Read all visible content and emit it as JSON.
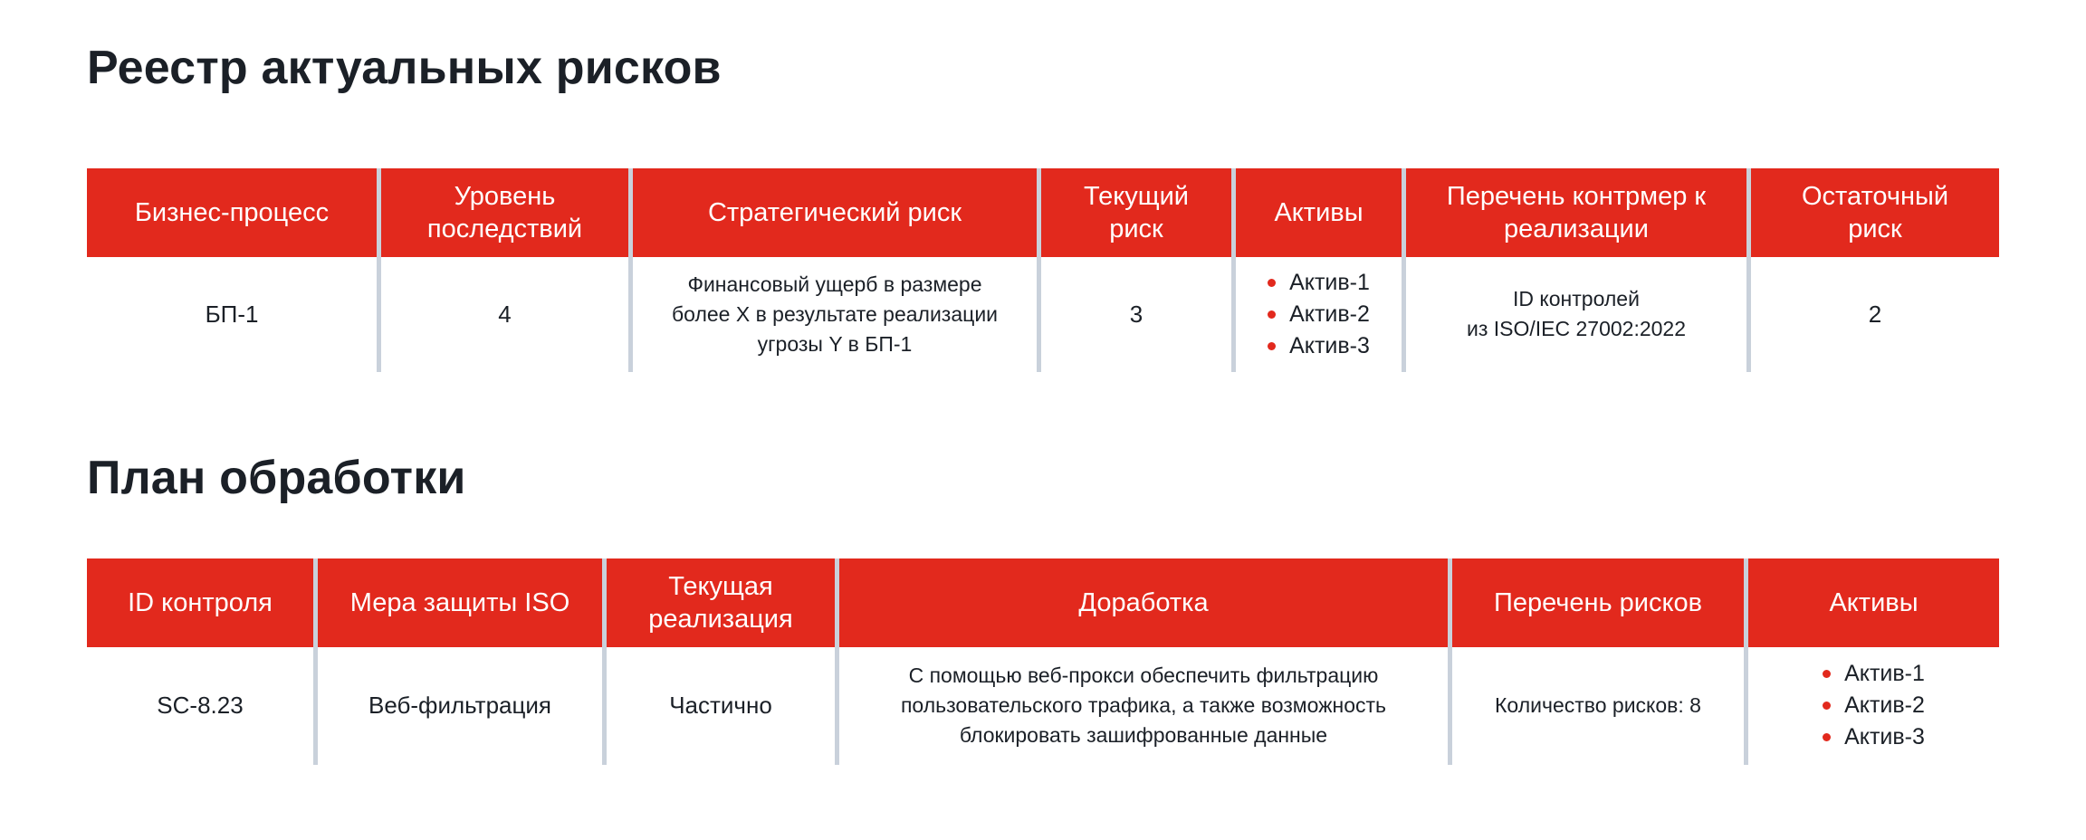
{
  "colors": {
    "accent_red": "#e2291d",
    "divider": "#c9d1db",
    "text_dark": "#1b2027",
    "header_text": "#ffffff",
    "page_bg": "#ffffff"
  },
  "risk_register": {
    "title": "Реестр актуальных рисков",
    "headers": [
      "Бизнес-процесс",
      "Уровень последствий",
      "Стратегический риск",
      "Текущий риск",
      "Активы",
      "Перечень контрмер к реализации",
      "Остаточный риск"
    ],
    "row": {
      "business_process": "БП-1",
      "consequence_level": "4",
      "strategic_risk": [
        "Финансовый ущерб в размере",
        "более X в результате реализации",
        "угрозы Y в БП-1"
      ],
      "current_risk": "3",
      "assets": [
        "Актив-1",
        "Актив-2",
        "Актив-3"
      ],
      "countermeasures": [
        "ID контролей",
        "из ISO/IEC 27002:2022"
      ],
      "residual_risk": "2"
    }
  },
  "treatment_plan": {
    "title": "План обработки",
    "headers": [
      "ID контроля",
      "Мера защиты ISO",
      "Текущая реализация",
      "Доработка",
      "Перечень рисков",
      "Активы"
    ],
    "row": {
      "control_id": "SC-8.23",
      "iso_measure": "Веб-фильтрация",
      "current_implementation": "Частично",
      "improvement": [
        "С помощью веб-прокси обеспечить фильтрацию",
        "пользовательского трафика, а также возможность",
        "блокировать зашифрованные данные"
      ],
      "risk_list": "Количество рисков: 8",
      "assets": [
        "Актив-1",
        "Актив-2",
        "Актив-3"
      ]
    }
  }
}
